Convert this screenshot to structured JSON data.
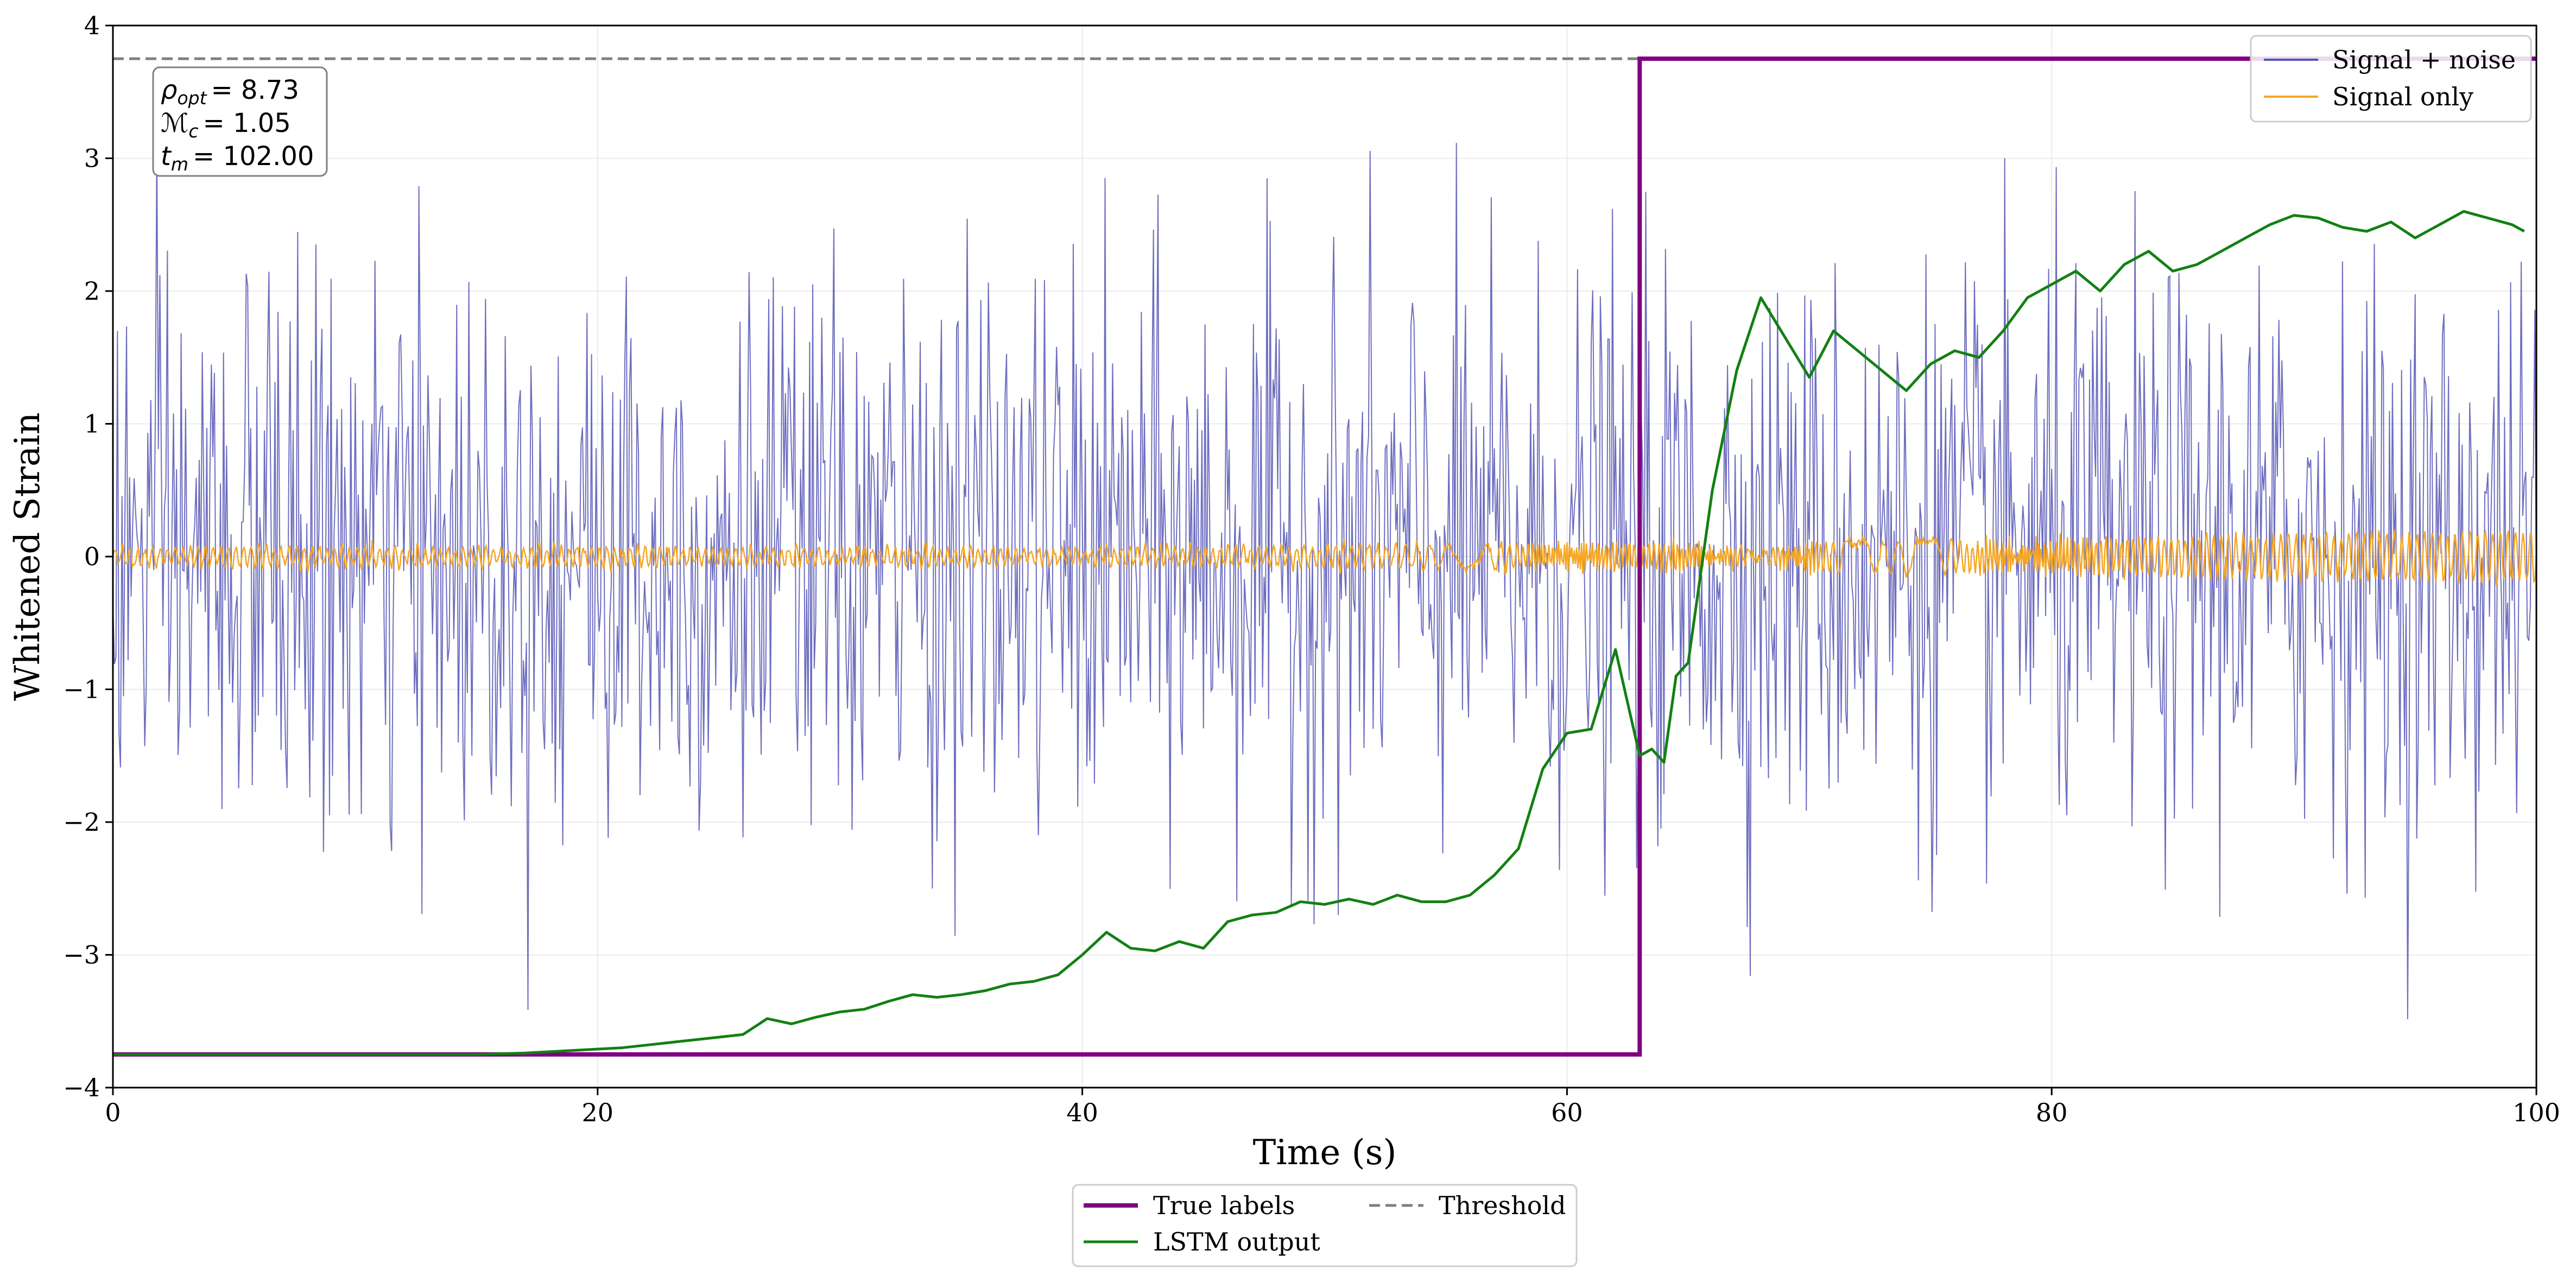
{
  "chart_data": {
    "type": "line",
    "title": "",
    "xlabel": "Time (s)",
    "ylabel": "Whitened Strain",
    "xlim": [
      0,
      100
    ],
    "ylim": [
      -4,
      4
    ],
    "xticks": [
      0,
      20,
      40,
      60,
      80,
      100
    ],
    "xtick_labels": [
      "0",
      "20",
      "40",
      "60",
      "80",
      "100"
    ],
    "yticks": [
      -4,
      -3,
      -2,
      -1,
      0,
      1,
      2,
      3,
      4
    ],
    "ytick_labels": [
      "−4",
      "−3",
      "−2",
      "−1",
      "0",
      "1",
      "2",
      "3",
      "4"
    ],
    "grid": true,
    "threshold": 3.75,
    "series": [
      {
        "name": "Signal + noise",
        "color": "#5555b5",
        "style": "noise",
        "sample_interval": 0.0625,
        "amplitude": 1.05,
        "note": "random-like noise around 0, mostly between -2.6 and 2.6"
      },
      {
        "name": "Signal only",
        "color": "#f5a623",
        "style": "chirp",
        "envelope": [
          {
            "x": 0,
            "a": 0.07
          },
          {
            "x": 40,
            "a": 0.06
          },
          {
            "x": 55,
            "a": 0.09
          },
          {
            "x": 65,
            "a": 0.1
          },
          {
            "x": 68,
            "a": 0.05
          },
          {
            "x": 70,
            "a": 0.12
          },
          {
            "x": 80,
            "a": 0.13
          },
          {
            "x": 100,
            "a": 0.2
          }
        ]
      },
      {
        "name": "True labels",
        "color": "#800080",
        "style": "step",
        "x": [
          0,
          63,
          63,
          100
        ],
        "y": [
          -3.75,
          -3.75,
          3.75,
          3.75
        ]
      },
      {
        "name": "LSTM output",
        "color": "#138013",
        "style": "line",
        "x": [
          0,
          5,
          10,
          15,
          17,
          19,
          21,
          22,
          23,
          24,
          25,
          26,
          27,
          28,
          29,
          30,
          31,
          32,
          33,
          34,
          35,
          36,
          37,
          38,
          39,
          40,
          41,
          42,
          43,
          44,
          45,
          46,
          47,
          48,
          49,
          50,
          51,
          52,
          53,
          54,
          55,
          56,
          57,
          58,
          59,
          60,
          61,
          62,
          62.5,
          63,
          63.5,
          64,
          64.5,
          65,
          66,
          67,
          68,
          69,
          70,
          71,
          72,
          73,
          74,
          75,
          76,
          77,
          78,
          79,
          80,
          81,
          82,
          83,
          84,
          85,
          86,
          87,
          88,
          89,
          90,
          91,
          92,
          93,
          94,
          95,
          96,
          97,
          98,
          99,
          99.5
        ],
        "y": [
          -3.75,
          -3.75,
          -3.75,
          -3.75,
          -3.74,
          -3.72,
          -3.7,
          -3.68,
          -3.66,
          -3.64,
          -3.62,
          -3.6,
          -3.48,
          -3.52,
          -3.47,
          -3.43,
          -3.41,
          -3.35,
          -3.3,
          -3.32,
          -3.3,
          -3.27,
          -3.22,
          -3.2,
          -3.15,
          -3.0,
          -2.83,
          -2.95,
          -2.97,
          -2.9,
          -2.95,
          -2.75,
          -2.7,
          -2.68,
          -2.6,
          -2.62,
          -2.58,
          -2.62,
          -2.55,
          -2.6,
          -2.6,
          -2.55,
          -2.4,
          -2.2,
          -1.6,
          -1.33,
          -1.3,
          -0.7,
          -1.1,
          -1.5,
          -1.45,
          -1.55,
          -0.9,
          -0.8,
          0.5,
          1.4,
          1.95,
          1.65,
          1.35,
          1.7,
          1.55,
          1.4,
          1.25,
          1.45,
          1.55,
          1.5,
          1.7,
          1.95,
          2.05,
          2.15,
          2.0,
          2.2,
          2.3,
          2.15,
          2.2,
          2.3,
          2.4,
          2.5,
          2.57,
          2.55,
          2.48,
          2.45,
          2.52,
          2.4,
          2.5,
          2.6,
          2.55,
          2.5,
          2.45
        ]
      }
    ],
    "annotation_box": {
      "lines": [
        "ρopt = 8.73",
        "ℳc = 1.05",
        "tm = 102.00"
      ],
      "rho_symbol": "ρ",
      "rho_sub": "opt",
      "rho_value": "= 8.73",
      "mc_symbol": "ℳ",
      "mc_sub": "c",
      "mc_value": "= 1.05",
      "tm_symbol": "t",
      "tm_sub": "m",
      "tm_value": "= 102.00"
    },
    "legend_top_right": [
      "Signal + noise",
      "Signal only"
    ],
    "legend_bottom": [
      "True labels",
      "Threshold",
      "LSTM output"
    ]
  },
  "colors": {
    "threshold": "#808080",
    "grid": "#ebebeb",
    "axis": "#000000"
  }
}
